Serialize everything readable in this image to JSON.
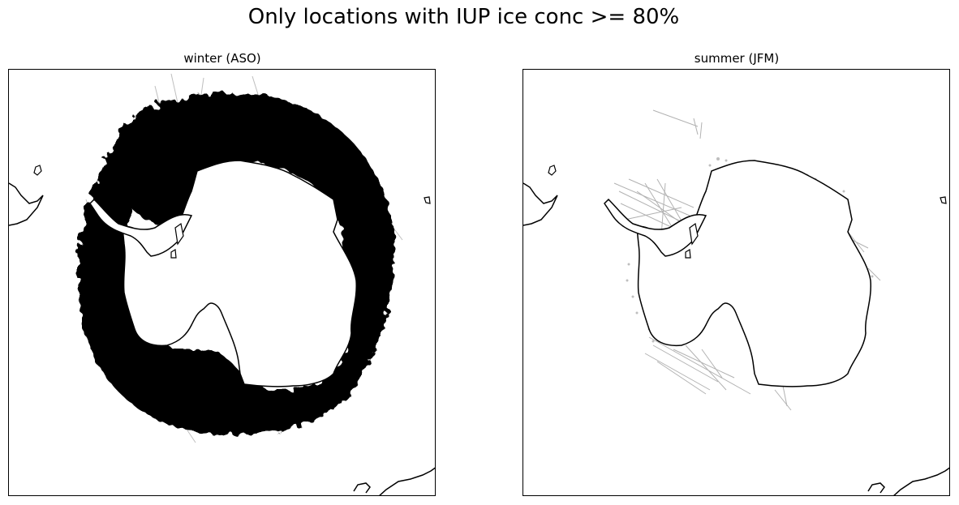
{
  "figure": {
    "title": "Only locations with IUP ice conc >= 80%"
  },
  "panels": [
    {
      "title": "winter (ASO)",
      "season": "winter",
      "months": "ASO",
      "ice_coverage": "dense circumpolar ring around Antarctica"
    },
    {
      "title": "summer (JFM)",
      "season": "summer",
      "months": "JFM",
      "ice_coverage": "sparse tracks near coast, mainly Weddell Sea and Ross Sea"
    }
  ],
  "style": {
    "coast_color": "#000000",
    "track_color": "#000000",
    "background": "#ffffff"
  }
}
